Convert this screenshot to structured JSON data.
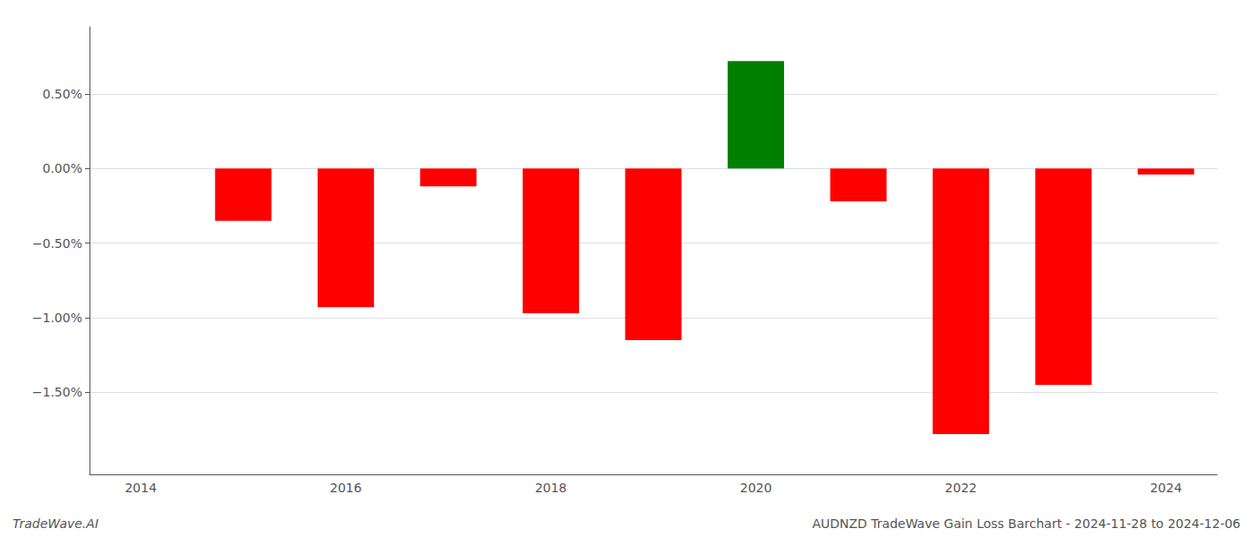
{
  "chart_data": {
    "type": "bar",
    "categories": [
      "2014",
      null,
      "2016",
      null,
      "2018",
      null,
      "2020",
      null,
      "2022",
      null,
      "2024"
    ],
    "values": [
      0.0,
      -0.35,
      -0.93,
      -0.12,
      -0.97,
      -1.15,
      0.72,
      -0.22,
      -1.78,
      -1.45,
      -0.04
    ],
    "colors": [
      "red",
      "red",
      "red",
      "red",
      "red",
      "red",
      "green",
      "red",
      "red",
      "red",
      "red"
    ],
    "ylim": [
      -2.05,
      0.95
    ],
    "yticks": [
      {
        "value": 0.5,
        "label": "0.50%"
      },
      {
        "value": 0,
        "label": "0.00%"
      },
      {
        "value": -0.5,
        "label": "−0.50%"
      },
      {
        "value": -1,
        "label": "−1.00%"
      },
      {
        "value": -1.5,
        "label": "−1.50%"
      }
    ],
    "grid": true,
    "annotations": [
      "TradeWave.AI",
      "AUDNZD TradeWave Gain Loss Barchart - 2024-11-28 to 2024-12-06"
    ]
  }
}
